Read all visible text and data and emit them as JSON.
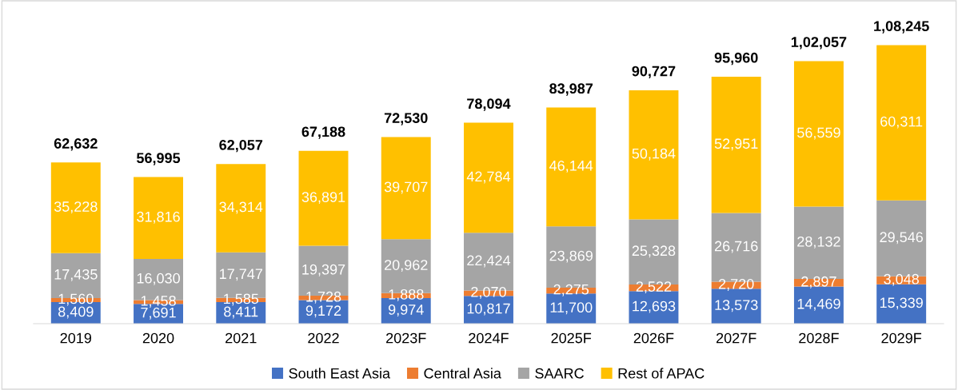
{
  "chart_data": {
    "type": "bar",
    "stacked": true,
    "legend": "bottom",
    "categories": [
      "2019",
      "2020",
      "2021",
      "2022",
      "2023F",
      "2024F",
      "2025F",
      "2026F",
      "2027F",
      "2028F",
      "2029F"
    ],
    "series": [
      {
        "name": "South East Asia",
        "color": "#4472c4",
        "values": [
          8409,
          7691,
          8411,
          9172,
          9974,
          10817,
          11700,
          12693,
          13573,
          14469,
          15339
        ],
        "value_labels": [
          "8,409",
          "7,691",
          "8,411",
          "9,172",
          "9,974",
          "10,817",
          "11,700",
          "12,693",
          "13,573",
          "14,469",
          "15,339"
        ]
      },
      {
        "name": "Central Asia",
        "color": "#ed7d31",
        "values": [
          1560,
          1458,
          1585,
          1728,
          1888,
          2070,
          2275,
          2522,
          2720,
          2897,
          3048
        ],
        "value_labels": [
          "1,560",
          "1,458",
          "1,585",
          "1,728",
          "1,888",
          "2,070",
          "2,275",
          "2,522",
          "2,720",
          "2,897",
          "3,048"
        ]
      },
      {
        "name": "SAARC",
        "color": "#a5a5a5",
        "values": [
          17435,
          16030,
          17747,
          19397,
          20962,
          22424,
          23869,
          25328,
          26716,
          28132,
          29546
        ],
        "value_labels": [
          "17,435",
          "16,030",
          "17,747",
          "19,397",
          "20,962",
          "22,424",
          "23,869",
          "25,328",
          "26,716",
          "28,132",
          "29,546"
        ]
      },
      {
        "name": "Rest of APAC",
        "color": "#ffc000",
        "values": [
          35228,
          31816,
          34314,
          36891,
          39707,
          42784,
          46144,
          50184,
          52951,
          56559,
          60311
        ],
        "value_labels": [
          "35,228",
          "31,816",
          "34,314",
          "36,891",
          "39,707",
          "42,784",
          "46,144",
          "50,184",
          "52,951",
          "56,559",
          "60,311"
        ]
      }
    ],
    "totals": [
      "62,632",
      "56,995",
      "62,057",
      "67,188",
      "72,530",
      "78,094",
      "83,987",
      "90,727",
      "95,960",
      "1,02,057",
      "1,08,245"
    ]
  }
}
